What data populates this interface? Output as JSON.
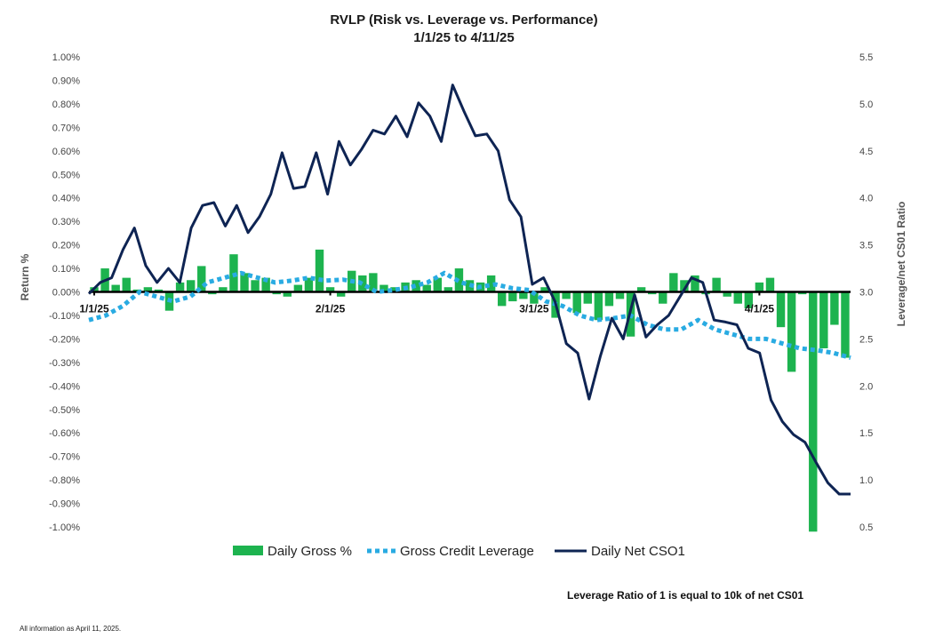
{
  "colors": {
    "gross_bar": "#1db34f",
    "leverage_line": "#29abe2",
    "net_cs01_line": "#0e2453",
    "zero_line": "#000000",
    "text": "#222222"
  },
  "footnote": "Leverage Ratio of 1 is equal to 10k of net CS01",
  "footer": "All information as April 11, 2025.",
  "chart_data": {
    "type": "bar+line",
    "title": "RVLP (Risk vs. Leverage vs. Performance)",
    "subtitle": "1/1/25 to 4/11/25",
    "ylabel": "Return %",
    "y2label": "Leverage/net CS01 Ratio",
    "ylim": [
      -1.0,
      1.0
    ],
    "y2lim": [
      0.5,
      5.5
    ],
    "y_ticks": [
      "1.00%",
      "0.90%",
      "0.80%",
      "0.70%",
      "0.60%",
      "0.50%",
      "0.40%",
      "0.30%",
      "0.20%",
      "0.10%",
      "0.00%",
      "-0.10%",
      "-0.20%",
      "-0.30%",
      "-0.40%",
      "-0.50%",
      "-0.60%",
      "-0.70%",
      "-0.80%",
      "-0.90%",
      "-1.00%"
    ],
    "y2_ticks": [
      "5.5",
      "5.0",
      "4.5",
      "4.0",
      "3.5",
      "3.0",
      "2.5",
      "2.0",
      "1.5",
      "1.0",
      "0.5"
    ],
    "x_labels": [
      {
        "label": "1/1/25",
        "index": 0
      },
      {
        "label": "2/1/25",
        "index": 22
      },
      {
        "label": "3/1/25",
        "index": 41
      },
      {
        "label": "4/1/25",
        "index": 62
      }
    ],
    "grid": false,
    "legend_position": "bottom",
    "legend": [
      "Daily Gross %",
      "Gross Credit Leverage",
      "Daily Net CSO1"
    ],
    "series": [
      {
        "name": "Daily Gross %",
        "type": "bar",
        "axis": "left",
        "values": [
          0.02,
          0.1,
          0.03,
          0.06,
          0.01,
          0.02,
          0.01,
          -0.08,
          0.04,
          0.05,
          0.11,
          -0.01,
          0.02,
          0.16,
          0.08,
          0.05,
          0.06,
          -0.01,
          -0.02,
          0.03,
          0.06,
          0.18,
          0.02,
          -0.02,
          0.09,
          0.07,
          0.08,
          0.03,
          0.02,
          0.04,
          0.05,
          0.03,
          0.06,
          0.02,
          0.1,
          0.05,
          0.04,
          0.07,
          -0.06,
          -0.04,
          -0.03,
          -0.05,
          0.02,
          -0.11,
          -0.03,
          -0.09,
          -0.05,
          -0.12,
          -0.06,
          -0.03,
          -0.19,
          0.02,
          -0.01,
          -0.05,
          0.08,
          0.05,
          0.07,
          -0.01,
          0.06,
          -0.02,
          -0.05,
          -0.07,
          0.04,
          0.06,
          -0.15,
          -0.34,
          -0.01,
          -1.02,
          -0.24,
          -0.14,
          -0.28
        ]
      },
      {
        "name": "Gross Credit Leverage",
        "type": "line",
        "style": "dotted",
        "axis": "right",
        "values": [
          2.7,
          2.75,
          2.85,
          3.0,
          2.95,
          2.9,
          2.95,
          3.1,
          3.15,
          3.2,
          3.15,
          3.1,
          3.12,
          3.15,
          3.12,
          3.13,
          3.1,
          3.0,
          3.02,
          3.05,
          3.1,
          3.2,
          3.1,
          3.05,
          3.08,
          3.04,
          3.02,
          2.9,
          2.85,
          2.75,
          2.7,
          2.72,
          2.75,
          2.65,
          2.6,
          2.6,
          2.7,
          2.6,
          2.55,
          2.5,
          2.5,
          2.45,
          2.4,
          2.38,
          2.35,
          2.3
        ]
      },
      {
        "name": "Daily Net CSO1",
        "type": "line",
        "style": "solid",
        "axis": "right",
        "values": [
          2.98,
          3.1,
          3.15,
          3.45,
          3.68,
          3.28,
          3.1,
          3.25,
          3.1,
          3.68,
          3.92,
          3.95,
          3.7,
          3.92,
          3.63,
          3.8,
          4.04,
          4.48,
          4.1,
          4.12,
          4.48,
          4.04,
          4.6,
          4.35,
          4.52,
          4.72,
          4.68,
          4.87,
          4.65,
          5.01,
          4.87,
          4.6,
          5.2,
          4.92,
          4.66,
          4.68,
          4.5,
          3.98,
          3.8,
          3.08,
          3.15,
          2.9,
          2.45,
          2.35,
          1.86,
          2.32,
          2.72,
          2.5,
          2.97,
          2.52,
          2.65,
          2.75,
          2.95,
          3.15,
          3.1,
          2.7,
          2.68,
          2.65,
          2.4,
          2.35,
          1.85,
          1.62,
          1.48,
          1.4,
          1.18,
          0.97,
          0.85,
          0.85
        ]
      }
    ]
  }
}
